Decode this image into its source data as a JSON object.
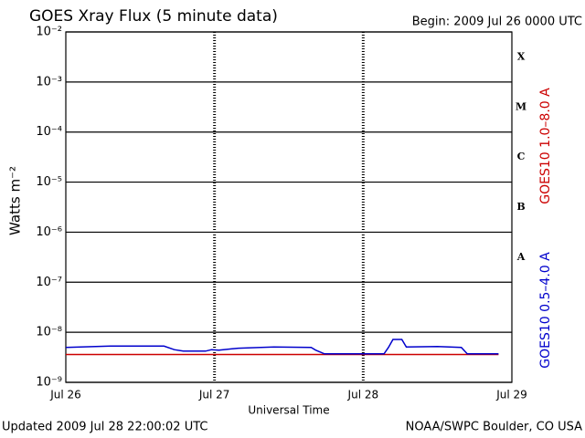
{
  "chart_data": {
    "type": "line",
    "title": "GOES Xray Flux (5 minute data)",
    "subtitle": "Begin:  2009 Jul 26 0000 UTC",
    "x_label": "Universal Time",
    "y_label": "Watts m⁻²",
    "updated": "Updated 2009 Jul 28 22:00:02 UTC",
    "source": "NOAA/SWPC Boulder, CO USA",
    "log_scale": true,
    "grid": true,
    "xlim": [
      0,
      3
    ],
    "xticks": [
      {
        "value": 0,
        "label": "Jul 26"
      },
      {
        "value": 1,
        "label": "Jul 27"
      },
      {
        "value": 2,
        "label": "Jul 28"
      },
      {
        "value": 3,
        "label": "Jul 29"
      }
    ],
    "ylim": [
      1e-09,
      0.01
    ],
    "yticks": [
      {
        "value": 1e-09,
        "label": "10⁻⁹"
      },
      {
        "value": 1e-08,
        "label": "10⁻⁸"
      },
      {
        "value": 1e-07,
        "label": "10⁻⁷"
      },
      {
        "value": 1e-06,
        "label": "10⁻⁶"
      },
      {
        "value": 1e-05,
        "label": "10⁻⁵"
      },
      {
        "value": 0.0001,
        "label": "10⁻⁴"
      },
      {
        "value": 0.001,
        "label": "10⁻³"
      },
      {
        "value": 0.01,
        "label": "10⁻²"
      }
    ],
    "flare_classes": [
      "A",
      "B",
      "C",
      "M",
      "X"
    ],
    "series": [
      {
        "name": "GOES10 1.0–8.0 A",
        "color": "#cc0000",
        "x": [
          0,
          0.5,
          1,
          1.5,
          2,
          2.5,
          2.91
        ],
        "values": [
          3.6e-09,
          3.6e-09,
          3.6e-09,
          3.6e-09,
          3.6e-09,
          3.6e-09,
          3.6e-09
        ]
      },
      {
        "name": "GOES10 0.5–4.0 A",
        "color": "#0000cc",
        "x": [
          0,
          0.3,
          0.66,
          0.73,
          0.79,
          0.94,
          0.98,
          1.03,
          1.16,
          1.4,
          1.65,
          1.68,
          1.74,
          2.0,
          2.14,
          2.17,
          2.2,
          2.26,
          2.29,
          2.5,
          2.66,
          2.7,
          2.91
        ],
        "values": [
          5e-09,
          5.3e-09,
          5.3e-09,
          4.5e-09,
          4.2e-09,
          4.2e-09,
          4.5e-09,
          4.4e-09,
          4.8e-09,
          5.1e-09,
          5e-09,
          4.4e-09,
          3.7e-09,
          3.7e-09,
          3.7e-09,
          5e-09,
          7.2e-09,
          7.2e-09,
          5.1e-09,
          5.2e-09,
          5e-09,
          3.7e-09,
          3.7e-09
        ]
      }
    ]
  }
}
